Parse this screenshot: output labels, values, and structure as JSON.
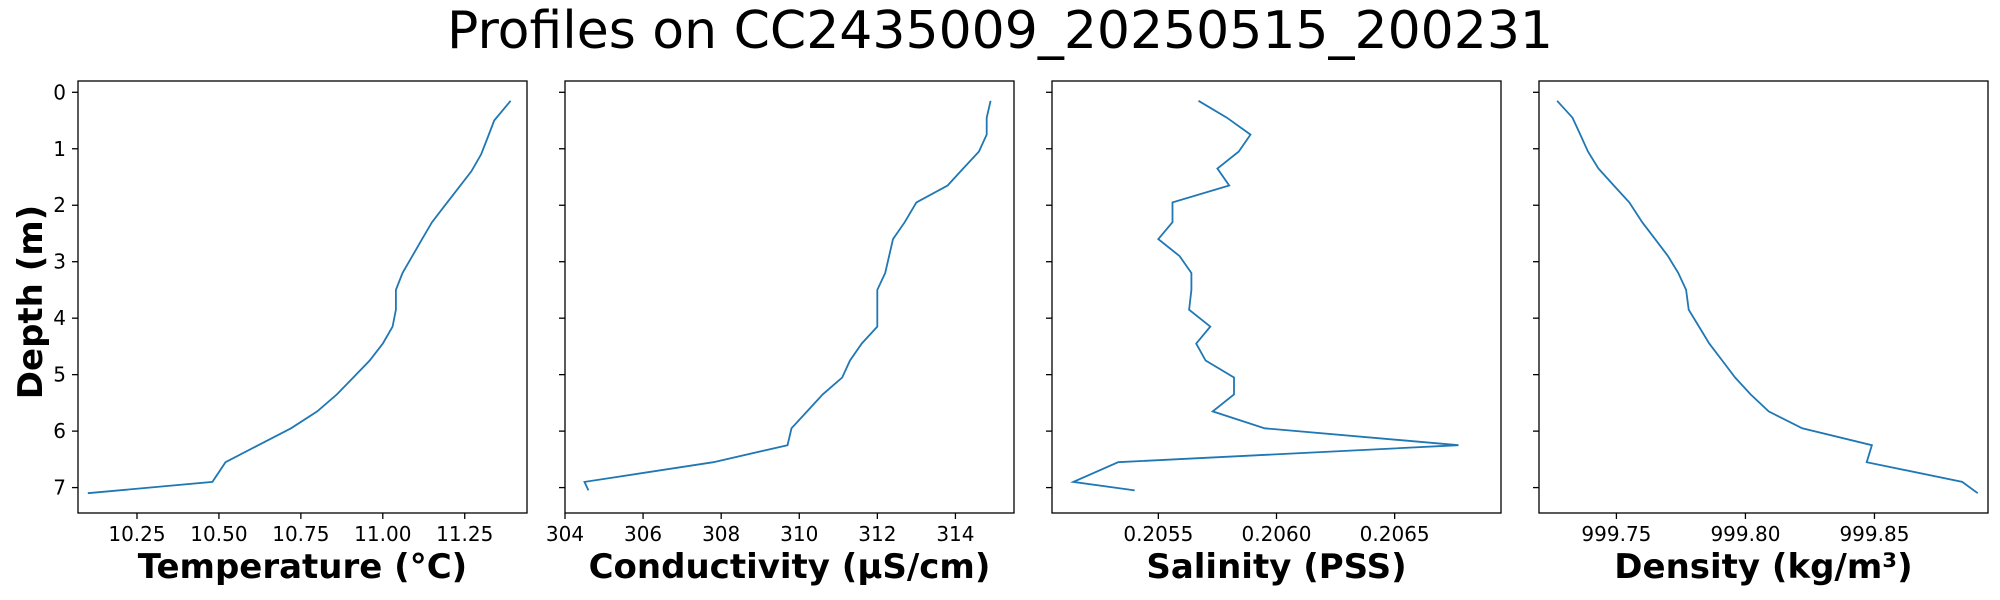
{
  "title": "Profiles on CC2435009_20250515_200231",
  "ylabel": "Depth (m)",
  "line_color": "#1f77b4",
  "chart_data": [
    {
      "type": "line",
      "orientation": "profile",
      "xlabel": "Temperature (°C)",
      "ylabel": "Depth (m)",
      "xlim": [
        10.07,
        11.44
      ],
      "ylim": [
        7.45,
        -0.2
      ],
      "xticks": [
        10.25,
        10.5,
        10.75,
        11.0,
        11.25
      ],
      "xtick_labels": [
        "10.25",
        "10.50",
        "10.75",
        "11.00",
        "11.25"
      ],
      "yticks": [
        0,
        1,
        2,
        3,
        4,
        5,
        6,
        7
      ],
      "ytick_labels": [
        "0",
        "1",
        "2",
        "3",
        "4",
        "5",
        "6",
        "7"
      ],
      "depth": [
        0.15,
        0.5,
        0.8,
        1.1,
        1.4,
        1.7,
        2.0,
        2.3,
        2.6,
        2.9,
        3.2,
        3.5,
        3.85,
        4.15,
        4.45,
        4.75,
        5.05,
        5.35,
        5.65,
        5.95,
        6.25,
        6.55,
        6.9,
        7.1
      ],
      "values": [
        11.39,
        11.34,
        11.32,
        11.3,
        11.27,
        11.23,
        11.19,
        11.15,
        11.12,
        11.09,
        11.06,
        11.04,
        11.04,
        11.03,
        11.0,
        10.96,
        10.91,
        10.86,
        10.8,
        10.72,
        10.62,
        10.52,
        10.48,
        10.1
      ]
    },
    {
      "type": "line",
      "orientation": "profile",
      "xlabel": "Conductivity (µS/cm)",
      "ylabel": "Depth (m)",
      "xlim": [
        304,
        315.5
      ],
      "ylim": [
        7.45,
        -0.2
      ],
      "xticks": [
        304,
        306,
        308,
        310,
        312,
        314
      ],
      "xtick_labels": [
        "304",
        "306",
        "308",
        "310",
        "312",
        "314"
      ],
      "yticks": [
        0,
        1,
        2,
        3,
        4,
        5,
        6,
        7
      ],
      "ytick_labels": [
        "0",
        "1",
        "2",
        "3",
        "4",
        "5",
        "6",
        "7"
      ],
      "depth": [
        0.15,
        0.45,
        0.75,
        1.05,
        1.35,
        1.65,
        1.95,
        2.3,
        2.6,
        2.9,
        3.2,
        3.5,
        3.85,
        4.15,
        4.45,
        4.75,
        5.05,
        5.35,
        5.65,
        5.95,
        6.25,
        6.55,
        6.9,
        7.05
      ],
      "values": [
        314.9,
        314.8,
        314.8,
        314.6,
        314.2,
        313.8,
        313.0,
        312.7,
        312.4,
        312.3,
        312.2,
        312.0,
        312.0,
        312.0,
        311.6,
        311.3,
        311.1,
        310.6,
        310.2,
        309.8,
        309.7,
        307.8,
        304.5,
        304.6
      ]
    },
    {
      "type": "line",
      "orientation": "profile",
      "xlabel": "Salinity (PSS)",
      "ylabel": "Depth (m)",
      "xlim": [
        0.20505,
        0.20695
      ],
      "ylim": [
        7.45,
        -0.2
      ],
      "xticks": [
        0.2055,
        0.206,
        0.2065
      ],
      "xtick_labels": [
        "0.2055",
        "0.2060",
        "0.2065"
      ],
      "yticks": [
        0,
        1,
        2,
        3,
        4,
        5,
        6,
        7
      ],
      "ytick_labels": [
        "0",
        "1",
        "2",
        "3",
        "4",
        "5",
        "6",
        "7"
      ],
      "depth": [
        0.15,
        0.45,
        0.75,
        1.05,
        1.35,
        1.65,
        1.95,
        2.3,
        2.6,
        2.9,
        3.2,
        3.5,
        3.85,
        4.15,
        4.45,
        4.75,
        5.05,
        5.35,
        5.65,
        5.95,
        6.25,
        6.55,
        6.9,
        7.05
      ],
      "values": [
        0.20567,
        0.20579,
        0.20589,
        0.20584,
        0.20575,
        0.2058,
        0.20556,
        0.20556,
        0.2055,
        0.20559,
        0.20564,
        0.20564,
        0.20563,
        0.20572,
        0.20566,
        0.2057,
        0.20582,
        0.20582,
        0.20573,
        0.20595,
        0.20677,
        0.20533,
        0.20514,
        0.2054
      ]
    },
    {
      "type": "line",
      "orientation": "profile",
      "xlabel": "Density (kg/m³)",
      "ylabel": "Depth (m)",
      "xlim": [
        999.72,
        999.894
      ],
      "ylim": [
        7.45,
        -0.2
      ],
      "xticks": [
        999.75,
        999.8,
        999.85
      ],
      "xtick_labels": [
        "999.75",
        "999.80",
        "999.85"
      ],
      "yticks": [
        0,
        1,
        2,
        3,
        4,
        5,
        6,
        7
      ],
      "ytick_labels": [
        "0",
        "1",
        "2",
        "3",
        "4",
        "5",
        "6",
        "7"
      ],
      "depth": [
        0.15,
        0.45,
        0.75,
        1.05,
        1.35,
        1.65,
        1.95,
        2.3,
        2.6,
        2.9,
        3.2,
        3.5,
        3.85,
        4.15,
        4.45,
        4.75,
        5.05,
        5.35,
        5.65,
        5.95,
        6.25,
        6.55,
        6.9,
        7.1
      ],
      "values": [
        999.727,
        999.733,
        999.736,
        999.739,
        999.743,
        999.749,
        999.755,
        999.76,
        999.765,
        999.77,
        999.774,
        999.777,
        999.778,
        999.782,
        999.786,
        999.791,
        999.796,
        999.802,
        999.809,
        999.822,
        999.849,
        999.847,
        999.884,
        999.89
      ]
    }
  ]
}
